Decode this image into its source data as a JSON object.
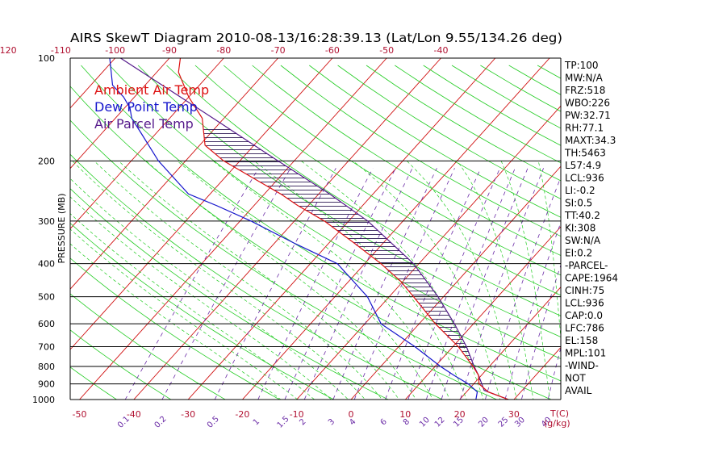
{
  "chart_data": {
    "type": "skewt",
    "title": "AIRS SkewT Diagram 2010-08-13/16:28:39.13 (Lat/Lon 9.55/134.26 deg)",
    "ylabel": "PRESSURE (MB)",
    "x_unit_label": "T(C)",
    "mixing_unit_label": "(g/kg)",
    "pressure_ticks": [
      100,
      200,
      300,
      400,
      500,
      600,
      700,
      800,
      900,
      1000
    ],
    "temp_ticks_bottom": [
      -50,
      -40,
      -30,
      -20,
      -10,
      0,
      10,
      20,
      30
    ],
    "temp_ticks_top": [
      -120,
      -110,
      -100,
      -90,
      -80,
      -70,
      -60,
      -50,
      -40
    ],
    "mixing_ratio_labels": [
      "0.1",
      "0.2",
      "0.5",
      "1",
      "1.5",
      "2",
      "3",
      "4",
      "6",
      "8",
      "10",
      "12",
      "15",
      "20",
      "25",
      "30",
      "40"
    ],
    "legend": [
      {
        "name": "Ambient Air Temp",
        "color": "#dd1111"
      },
      {
        "name": "Dew Point Temp",
        "color": "#1515cc"
      },
      {
        "name": "Air Parcel Temp",
        "color": "#551a8b"
      }
    ],
    "series": [
      {
        "name": "Ambient Air Temp",
        "points": [
          {
            "p": 1000,
            "t": 29.0
          },
          {
            "p": 950,
            "t": 24.0
          },
          {
            "p": 900,
            "t": 21.0
          },
          {
            "p": 850,
            "t": 19.5
          },
          {
            "p": 800,
            "t": 17.0
          },
          {
            "p": 700,
            "t": 11.0
          },
          {
            "p": 600,
            "t": 3.0
          },
          {
            "p": 500,
            "t": -5.5
          },
          {
            "p": 450,
            "t": -10.5
          },
          {
            "p": 400,
            "t": -17.0
          },
          {
            "p": 350,
            "t": -25.0
          },
          {
            "p": 300,
            "t": -34.5
          },
          {
            "p": 270,
            "t": -42.0
          },
          {
            "p": 250,
            "t": -47.0
          },
          {
            "p": 230,
            "t": -53.0
          },
          {
            "p": 200,
            "t": -63.0
          },
          {
            "p": 180,
            "t": -69.0
          },
          {
            "p": 150,
            "t": -74.0
          },
          {
            "p": 130,
            "t": -80.0
          },
          {
            "p": 110,
            "t": -86.0
          },
          {
            "p": 100,
            "t": -88.0
          }
        ]
      },
      {
        "name": "Dew Point Temp",
        "points": [
          {
            "p": 1000,
            "t": 23.0
          },
          {
            "p": 950,
            "t": 22.0
          },
          {
            "p": 900,
            "t": 19.0
          },
          {
            "p": 850,
            "t": 15.0
          },
          {
            "p": 800,
            "t": 11.0
          },
          {
            "p": 700,
            "t": 3.0
          },
          {
            "p": 600,
            "t": -7.0
          },
          {
            "p": 500,
            "t": -14.0
          },
          {
            "p": 400,
            "t": -25.0
          },
          {
            "p": 350,
            "t": -36.0
          },
          {
            "p": 300,
            "t": -48.0
          },
          {
            "p": 270,
            "t": -57.0
          },
          {
            "p": 250,
            "t": -64.0
          },
          {
            "p": 200,
            "t": -75.0
          },
          {
            "p": 165,
            "t": -83.0
          },
          {
            "p": 150,
            "t": -87.0
          },
          {
            "p": 140,
            "t": -89.0
          },
          {
            "p": 130,
            "t": -92.0
          },
          {
            "p": 120,
            "t": -96.0
          },
          {
            "p": 100,
            "t": -101.0
          }
        ]
      },
      {
        "name": "Air Parcel Temp",
        "points": [
          {
            "p": 1000,
            "t": 29.0
          },
          {
            "p": 940,
            "t": 23.0
          },
          {
            "p": 900,
            "t": 21.5
          },
          {
            "p": 850,
            "t": 19.5
          },
          {
            "p": 800,
            "t": 17.2
          },
          {
            "p": 700,
            "t": 12.5
          },
          {
            "p": 600,
            "t": 6.5
          },
          {
            "p": 500,
            "t": -1.0
          },
          {
            "p": 400,
            "t": -11.0
          },
          {
            "p": 300,
            "t": -26.5
          },
          {
            "p": 250,
            "t": -38.0
          },
          {
            "p": 200,
            "t": -53.0
          },
          {
            "p": 150,
            "t": -72.0
          },
          {
            "p": 100,
            "t": -99.0
          }
        ]
      }
    ]
  },
  "stats": [
    "TP:100",
    "MW:N/A",
    "FRZ:518",
    "WBO:226",
    "PW:32.71",
    "RH:77.1",
    "MAXT:34.3",
    "TH:5463",
    "L57:4.9",
    "LCL:936",
    "LI:-0.2",
    "SI:0.5",
    "TT:40.2",
    "KI:308",
    "SW:N/A",
    "EI:0.2",
    "-PARCEL-",
    "CAPE:1964",
    "CINH:75",
    "LCL:936",
    "CAP:0.0",
    "LFC:786",
    "EL:158",
    "MPL:101",
    "-WIND-",
    "NOT",
    "AVAIL"
  ]
}
